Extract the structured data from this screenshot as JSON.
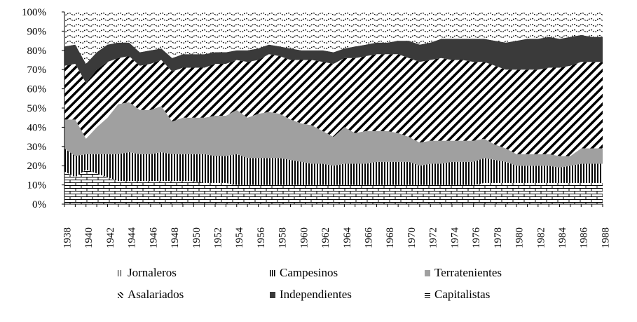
{
  "chart_data": {
    "type": "area",
    "stacked": true,
    "x": [
      1938,
      1939,
      1940,
      1941,
      1942,
      1943,
      1944,
      1945,
      1946,
      1947,
      1948,
      1949,
      1950,
      1951,
      1952,
      1953,
      1954,
      1955,
      1956,
      1957,
      1958,
      1959,
      1960,
      1961,
      1962,
      1963,
      1964,
      1965,
      1966,
      1967,
      1968,
      1969,
      1970,
      1971,
      1972,
      1973,
      1974,
      1975,
      1976,
      1977,
      1978,
      1979,
      1980,
      1981,
      1982,
      1983,
      1984,
      1985,
      1986,
      1987,
      1988
    ],
    "xticks": [
      "1938",
      "1940",
      "1942",
      "1944",
      "1946",
      "1948",
      "1950",
      "1952",
      "1954",
      "1956",
      "1958",
      "1960",
      "1962",
      "1964",
      "1966",
      "1968",
      "1970",
      "1972",
      "1974",
      "1976",
      "1978",
      "1980",
      "1982",
      "1984",
      "1986",
      "1988"
    ],
    "yticks": [
      "0%",
      "10%",
      "20%",
      "30%",
      "40%",
      "50%",
      "60%",
      "70%",
      "80%",
      "90%",
      "100%"
    ],
    "ylim": [
      0,
      100
    ],
    "series": [
      {
        "name": "Jornaleros",
        "values": [
          17,
          14,
          18,
          16,
          14,
          12,
          12,
          12,
          12,
          12,
          12,
          12,
          12,
          11,
          11,
          11,
          10,
          10,
          10,
          10,
          10,
          10,
          10,
          10,
          10,
          10,
          10,
          10,
          10,
          10,
          10,
          10,
          10,
          10,
          10,
          10,
          10,
          10,
          10,
          11,
          11,
          11,
          11,
          11,
          11,
          11,
          11,
          11,
          11,
          11,
          11
        ]
      },
      {
        "name": "Campesinos",
        "values": [
          12,
          11,
          8,
          10,
          12,
          14,
          15,
          14,
          14,
          15,
          14,
          14,
          14,
          15,
          14,
          14,
          16,
          14,
          14,
          14,
          14,
          13,
          12,
          11,
          11,
          10,
          11,
          11,
          11,
          12,
          12,
          12,
          12,
          10,
          11,
          11,
          12,
          12,
          12,
          13,
          12,
          11,
          9,
          9,
          9,
          9,
          8,
          9,
          10,
          10,
          10
        ]
      },
      {
        "name": "Terratenientes",
        "values": [
          15,
          19,
          8,
          14,
          19,
          26,
          26,
          23,
          23,
          24,
          17,
          19,
          19,
          19,
          21,
          21,
          23,
          21,
          23,
          24,
          23,
          21,
          20,
          20,
          17,
          15,
          19,
          16,
          17,
          16,
          16,
          15,
          13,
          12,
          12,
          12,
          11,
          11,
          11,
          10,
          8,
          7,
          6,
          6,
          6,
          6,
          6,
          5,
          8,
          8,
          8
        ]
      },
      {
        "name": "Asalariados",
        "values": [
          28,
          29,
          29,
          30,
          29,
          24,
          24,
          23,
          24,
          24,
          26,
          26,
          26,
          26,
          27,
          27,
          26,
          29,
          28,
          30,
          30,
          31,
          33,
          34,
          36,
          38,
          36,
          39,
          39,
          40,
          40,
          41,
          41,
          42,
          42,
          43,
          42,
          42,
          41,
          40,
          41,
          41,
          44,
          44,
          44,
          45,
          46,
          47,
          45,
          45,
          45
        ]
      },
      {
        "name": "Independientes",
        "values": [
          10,
          10,
          10,
          9,
          9,
          8,
          7,
          7,
          7,
          6,
          7,
          7,
          7,
          7,
          6,
          6,
          5,
          6,
          6,
          5,
          5,
          6,
          5,
          5,
          6,
          6,
          5,
          6,
          6,
          6,
          6,
          7,
          9,
          9,
          9,
          10,
          11,
          11,
          12,
          12,
          13,
          14,
          15,
          16,
          16,
          16,
          15,
          15,
          14,
          13,
          13
        ]
      },
      {
        "name": "Capitalistas",
        "values": [
          18,
          17,
          27,
          21,
          17,
          16,
          16,
          21,
          20,
          19,
          24,
          22,
          22,
          22,
          21,
          21,
          20,
          20,
          19,
          17,
          18,
          19,
          20,
          20,
          20,
          20,
          19,
          18,
          17,
          16,
          16,
          15,
          15,
          17,
          16,
          14,
          14,
          14,
          14,
          14,
          15,
          16,
          15,
          14,
          14,
          13,
          14,
          13,
          12,
          13,
          13
        ]
      }
    ],
    "legend": {
      "position": "bottom",
      "entries": [
        "Jornaleros",
        "Campesinos",
        "Terratenientes",
        "Asalariados",
        "Independientes",
        "Capitalistas"
      ]
    },
    "grid": false,
    "title": "",
    "xlabel": "",
    "ylabel": "",
    "colors": {
      "Terratenientes": "#a0a0a0",
      "Independientes": "#3a3a3a",
      "axis": "#000000"
    },
    "fills": {
      "Jornaleros": "brick-pattern",
      "Campesinos": "vertical-lines-pattern",
      "Terratenientes": "solid-gray",
      "Asalariados": "diagonal-stripes-pattern",
      "Independientes": "solid-dark-gray",
      "Capitalistas": "wave-pattern"
    }
  }
}
